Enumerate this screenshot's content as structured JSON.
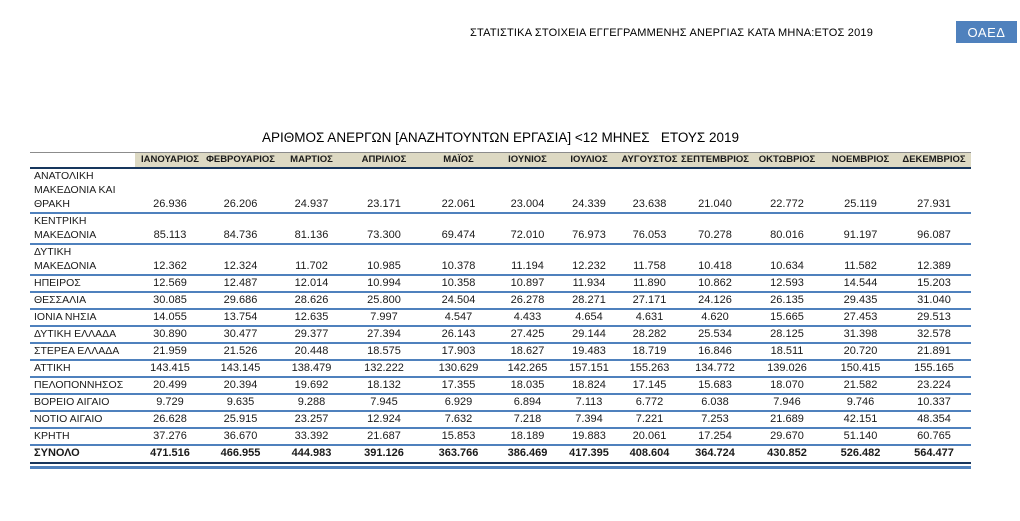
{
  "colors": {
    "accent": "#4f81bd",
    "header_bg": "#ddd9c3",
    "row_line": "#4f81bd",
    "dark_line": "#17365d"
  },
  "page": {
    "header_title": "ΣΤΑΤΙΣΤΙΚΑ ΣΤΟΙΧΕΙΑ ΕΓΓΕΓΡΑΜΜΕΝΗΣ ΑΝΕΡΓΙΑΣ ΚΑΤΑ ΜΗΝΑ:ΕΤΟΣ 2019",
    "logo_label": "ΟΑΕΔ"
  },
  "table": {
    "title": "ΑΡΙΘΜΟΣ ΑΝΕΡΓΩΝ [ΑΝΑΖΗΤΟΥΝΤΩΝ ΕΡΓΑΣΙΑ] <12 ΜΗΝΕΣ   ΕΤΟΥΣ 2019",
    "columns": [
      "ΙΑΝΟΥΑΡΙΟΣ",
      "ΦΕΒΡΟΥΑΡΙΟΣ",
      "ΜΑΡΤΙΟΣ",
      "ΑΠΡΙΛΙΟΣ",
      "ΜΑΪΟΣ",
      "ΙΟΥΝΙΟΣ",
      "ΙΟΥΛΙΟΣ",
      "ΑΥΓΟΥΣΤΟΣ",
      "ΣΕΠΤΕΜΒΡΙΟΣ",
      "ΟΚΤΩΒΡΙΟΣ",
      "ΝΟΕΜΒΡΙΟΣ",
      "ΔΕΚΕΜΒΡΙΟΣ"
    ],
    "rows": [
      {
        "region": "ΑΝΑΤΟΛΙΚΗ ΜΑΚΕΔΟΝΙΑ ΚΑΙ ΘΡΑΚΗ",
        "values": [
          "26.936",
          "26.206",
          "24.937",
          "23.171",
          "22.061",
          "23.004",
          "24.339",
          "23.638",
          "21.040",
          "22.772",
          "25.119",
          "27.931"
        ]
      },
      {
        "region": "ΚΕΝΤΡΙΚΗ ΜΑΚΕΔΟΝΙΑ",
        "values": [
          "85.113",
          "84.736",
          "81.136",
          "73.300",
          "69.474",
          "72.010",
          "76.973",
          "76.053",
          "70.278",
          "80.016",
          "91.197",
          "96.087"
        ]
      },
      {
        "region": "ΔΥΤΙΚΗ ΜΑΚΕΔΟΝΙΑ",
        "values": [
          "12.362",
          "12.324",
          "11.702",
          "10.985",
          "10.378",
          "11.194",
          "12.232",
          "11.758",
          "10.418",
          "10.634",
          "11.582",
          "12.389"
        ]
      },
      {
        "region": "ΗΠΕΙΡΟΣ",
        "values": [
          "12.569",
          "12.487",
          "12.014",
          "10.994",
          "10.358",
          "10.897",
          "11.934",
          "11.890",
          "10.862",
          "12.593",
          "14.544",
          "15.203"
        ]
      },
      {
        "region": "ΘΕΣΣΑΛΙΑ",
        "values": [
          "30.085",
          "29.686",
          "28.626",
          "25.800",
          "24.504",
          "26.278",
          "28.271",
          "27.171",
          "24.126",
          "26.135",
          "29.435",
          "31.040"
        ]
      },
      {
        "region": "ΙΟΝΙΑ ΝΗΣΙΑ",
        "values": [
          "14.055",
          "13.754",
          "12.635",
          "7.997",
          "4.547",
          "4.433",
          "4.654",
          "4.631",
          "4.620",
          "15.665",
          "27.453",
          "29.513"
        ]
      },
      {
        "region": "ΔΥΤΙΚΗ ΕΛΛΑΔΑ",
        "values": [
          "30.890",
          "30.477",
          "29.377",
          "27.394",
          "26.143",
          "27.425",
          "29.144",
          "28.282",
          "25.534",
          "28.125",
          "31.398",
          "32.578"
        ]
      },
      {
        "region": "ΣΤΕΡΕΑ ΕΛΛΑΔΑ",
        "values": [
          "21.959",
          "21.526",
          "20.448",
          "18.575",
          "17.903",
          "18.627",
          "19.483",
          "18.719",
          "16.846",
          "18.511",
          "20.720",
          "21.891"
        ]
      },
      {
        "region": "ΑΤΤΙΚΗ",
        "values": [
          "143.415",
          "143.145",
          "138.479",
          "132.222",
          "130.629",
          "142.265",
          "157.151",
          "155.263",
          "134.772",
          "139.026",
          "150.415",
          "155.165"
        ]
      },
      {
        "region": "ΠΕΛΟΠΟΝΝΗΣΟΣ",
        "values": [
          "20.499",
          "20.394",
          "19.692",
          "18.132",
          "17.355",
          "18.035",
          "18.824",
          "17.145",
          "15.683",
          "18.070",
          "21.582",
          "23.224"
        ]
      },
      {
        "region": "ΒΟΡΕΙΟ ΑΙΓΑΙΟ",
        "values": [
          "9.729",
          "9.635",
          "9.288",
          "7.945",
          "6.929",
          "6.894",
          "7.113",
          "6.772",
          "6.038",
          "7.946",
          "9.746",
          "10.337"
        ]
      },
      {
        "region": "ΝΟΤΙΟ ΑΙΓΑΙΟ",
        "values": [
          "26.628",
          "25.915",
          "23.257",
          "12.924",
          "7.632",
          "7.218",
          "7.394",
          "7.221",
          "7.253",
          "21.689",
          "42.151",
          "48.354"
        ]
      },
      {
        "region": "ΚΡΗΤΗ",
        "values": [
          "37.276",
          "36.670",
          "33.392",
          "21.687",
          "15.853",
          "18.189",
          "19.883",
          "20.061",
          "17.254",
          "29.670",
          "51.140",
          "60.765"
        ]
      }
    ],
    "total": {
      "label": "ΣΥΝΟΛΟ",
      "values": [
        "471.516",
        "466.955",
        "444.983",
        "391.126",
        "363.766",
        "386.469",
        "417.395",
        "408.604",
        "364.724",
        "430.852",
        "526.482",
        "564.477"
      ]
    }
  }
}
